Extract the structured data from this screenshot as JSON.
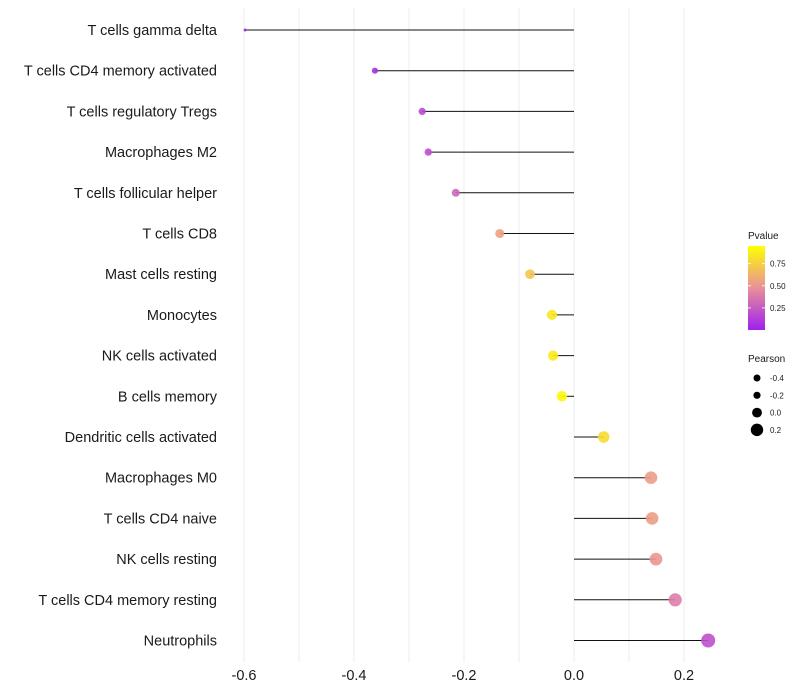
{
  "chart_data": {
    "type": "lollipop",
    "title": "",
    "xlabel": "",
    "ylabel": "",
    "xlim": [
      -0.62,
      0.255
    ],
    "x_ticks": [
      -0.6,
      -0.4,
      -0.2,
      0.0,
      0.2
    ],
    "x_tick_labels": [
      "-0.6",
      "-0.4",
      "-0.2",
      "0.0",
      "0.2"
    ],
    "grid": true,
    "baseline": 0.0,
    "categories": [
      "T cells gamma delta",
      "T cells CD4 memory activated",
      "T cells regulatory  Tregs ",
      "Macrophages M2",
      "T cells follicular helper",
      "T cells CD8",
      "Mast cells resting",
      "Monocytes",
      "NK cells activated",
      "B cells memory",
      "Dendritic cells activated",
      "Macrophages M0",
      "T cells CD4 naive",
      "NK cells resting",
      "T cells CD4 memory resting",
      "Neutrophils"
    ],
    "series": [
      {
        "name": "Pearson",
        "values": [
          -0.598,
          -0.362,
          -0.276,
          -0.265,
          -0.215,
          -0.135,
          -0.08,
          -0.04,
          -0.038,
          -0.022,
          0.054,
          0.14,
          0.142,
          0.149,
          0.184,
          0.244
        ]
      },
      {
        "name": "Pvalue",
        "values": [
          0.01,
          0.05,
          0.18,
          0.2,
          0.3,
          0.55,
          0.7,
          0.85,
          0.86,
          0.92,
          0.8,
          0.53,
          0.54,
          0.5,
          0.4,
          0.2
        ]
      }
    ],
    "legend": {
      "position": "right",
      "color": {
        "title": "Pvalue",
        "breaks": [
          "0.75",
          "0.50",
          "0.25"
        ],
        "break_values": [
          0.75,
          0.5,
          0.25
        ],
        "range": [
          0.0,
          0.95
        ],
        "low_color": "#a020f0",
        "mid_color": "#e8909a",
        "high_color": "#ffff00"
      },
      "size": {
        "title": "Pearson",
        "breaks": [
          "-0.4",
          "-0.2",
          "0.0",
          "0.2"
        ],
        "break_values": [
          -0.4,
          -0.2,
          0.0,
          0.2
        ]
      }
    }
  }
}
